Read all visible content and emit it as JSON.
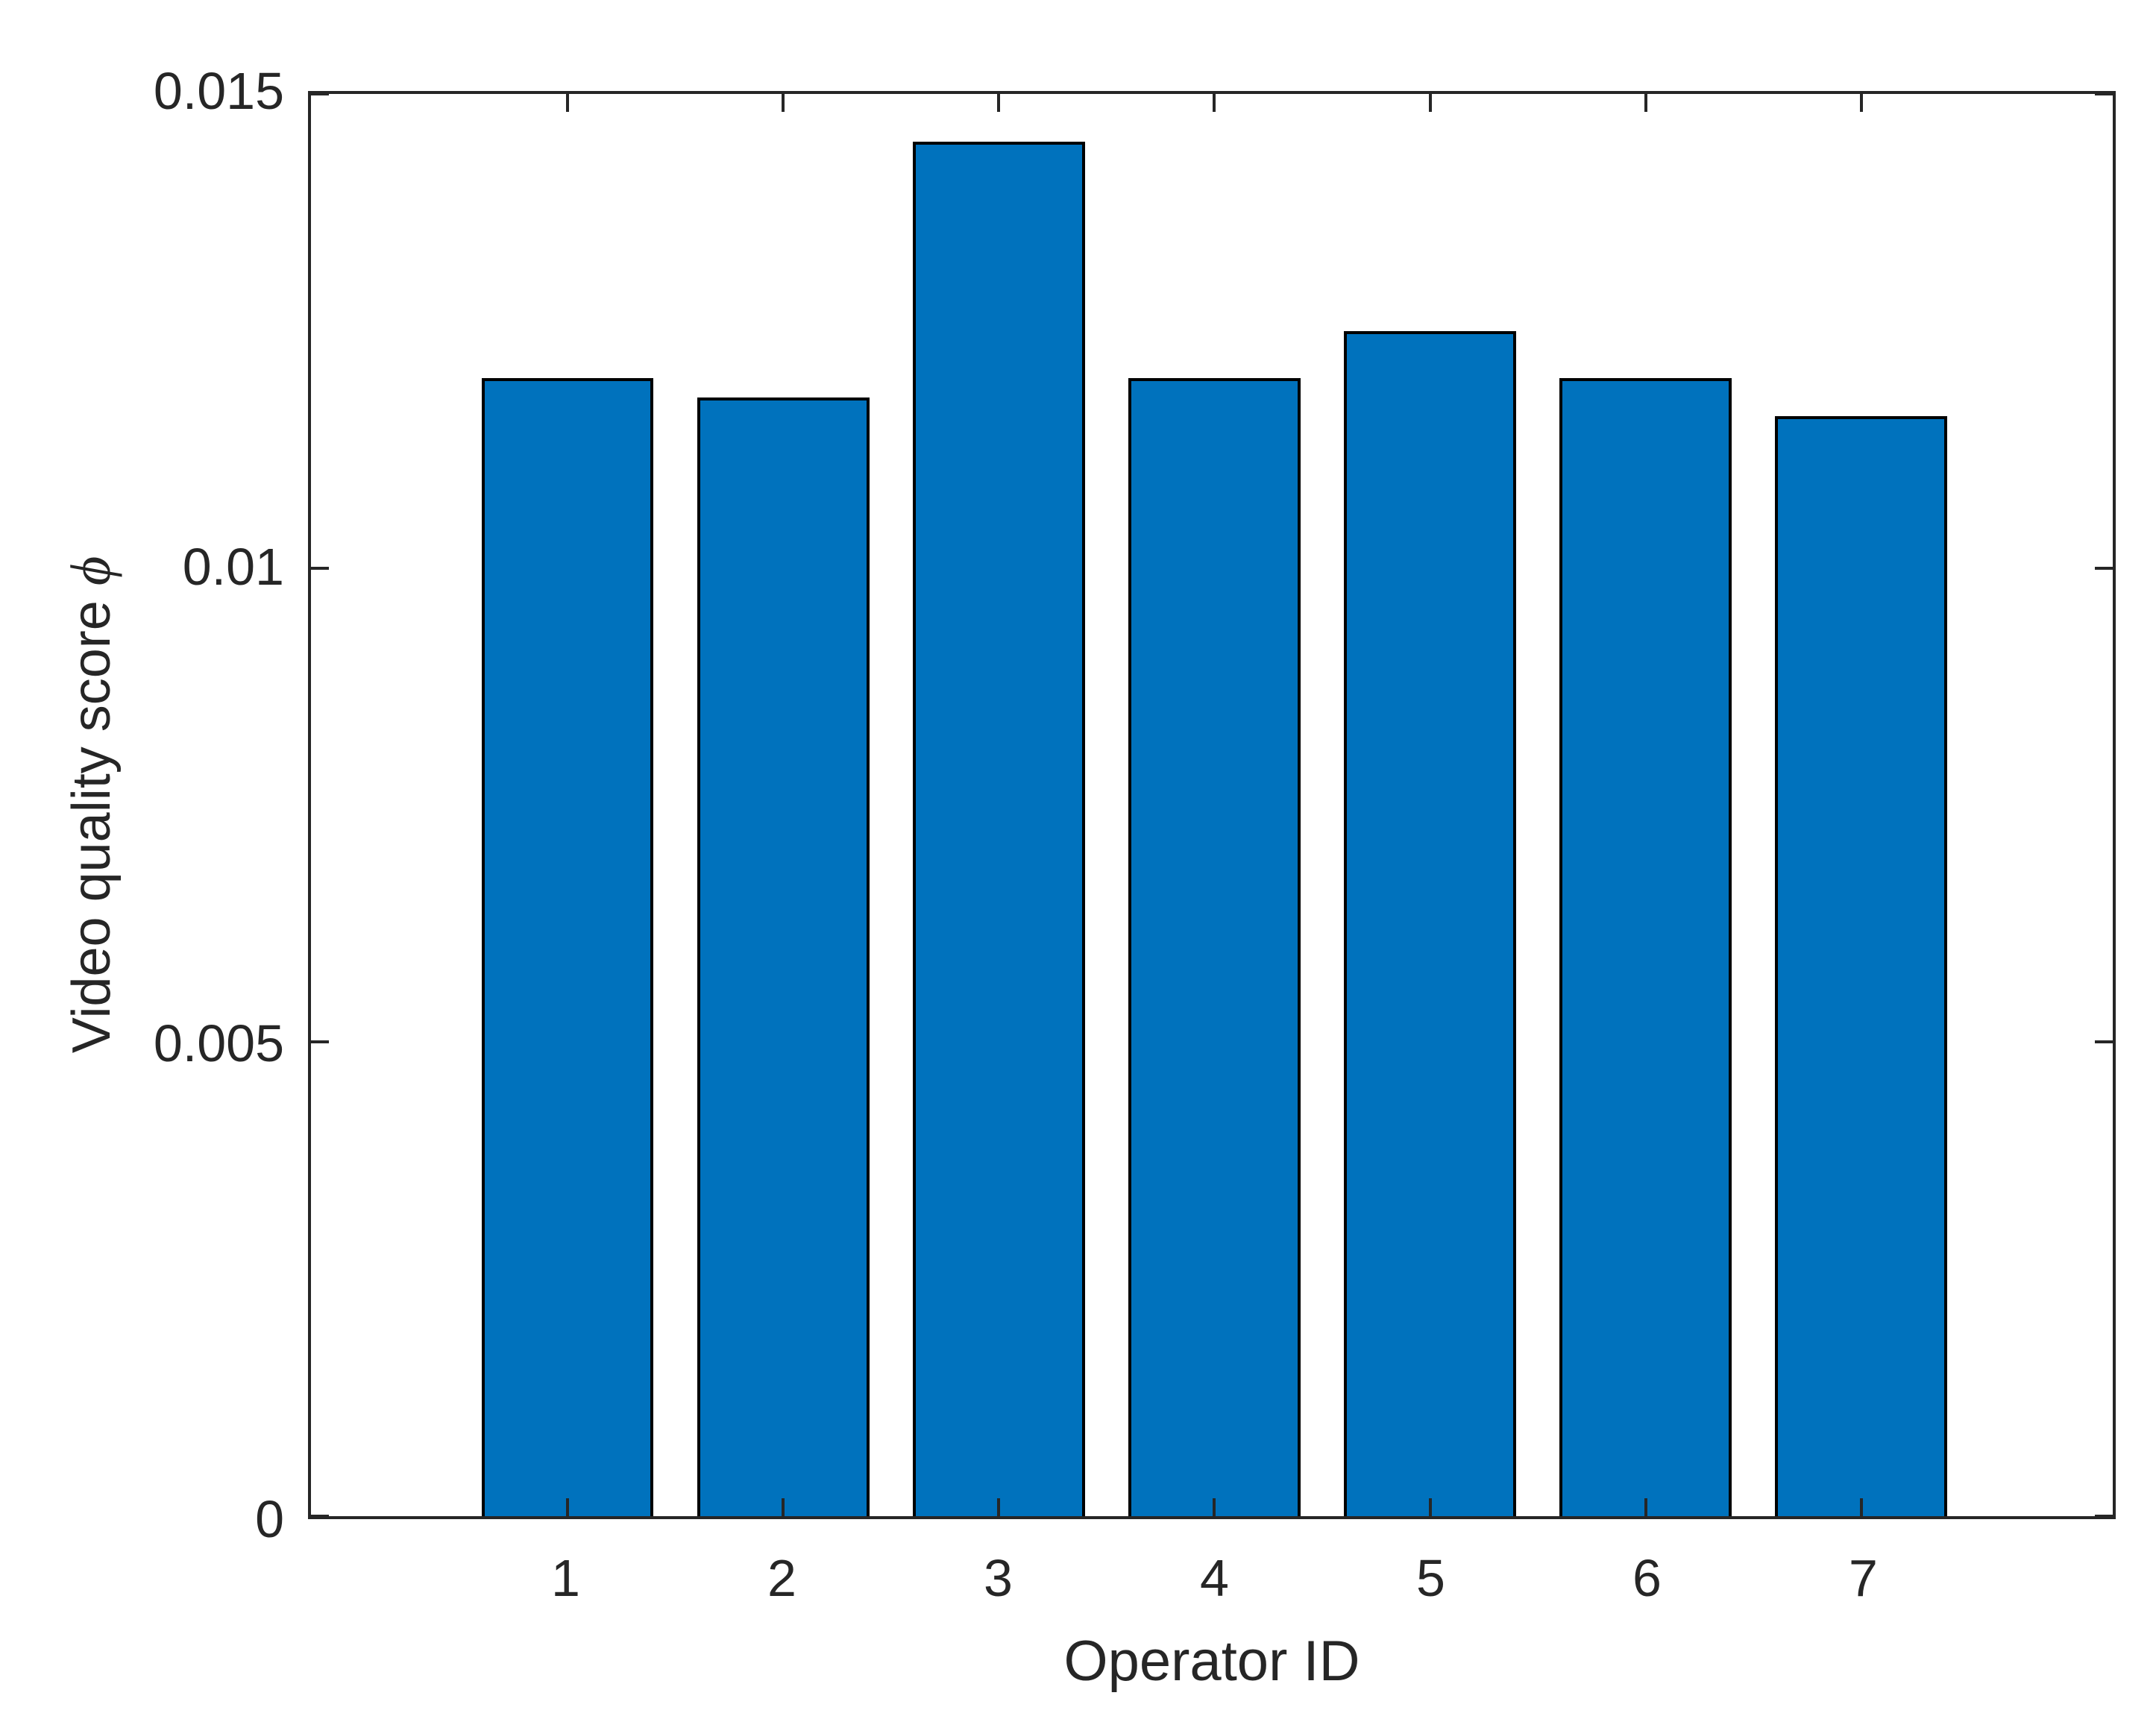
{
  "figure": {
    "background_color": "#FFFFFF"
  },
  "chart_data": {
    "type": "bar",
    "title": "",
    "xlabel": "Operator ID",
    "ylabel": "Video quality score ϕ",
    "ylabel_text": "Video quality score",
    "ylabel_symbol": "ϕ",
    "categories": [
      "1",
      "2",
      "3",
      "4",
      "5",
      "6",
      "7"
    ],
    "values": [
      0.012,
      0.0118,
      0.0145,
      0.012,
      0.0125,
      0.012,
      0.0116
    ],
    "ylim": [
      0,
      0.015
    ],
    "yticks": [
      0,
      0.005,
      0.01,
      0.015
    ],
    "ytick_labels": [
      "0",
      "0.005",
      "0.01",
      "0.015"
    ],
    "xtick_labels": [
      "1",
      "2",
      "3",
      "4",
      "5",
      "6",
      "7"
    ],
    "grid": false,
    "legend": null,
    "box": true,
    "tick_direction": "in",
    "bar_fill_color": "#0072BD",
    "bar_edge_color": "#000000",
    "axis_color": "#262626"
  }
}
